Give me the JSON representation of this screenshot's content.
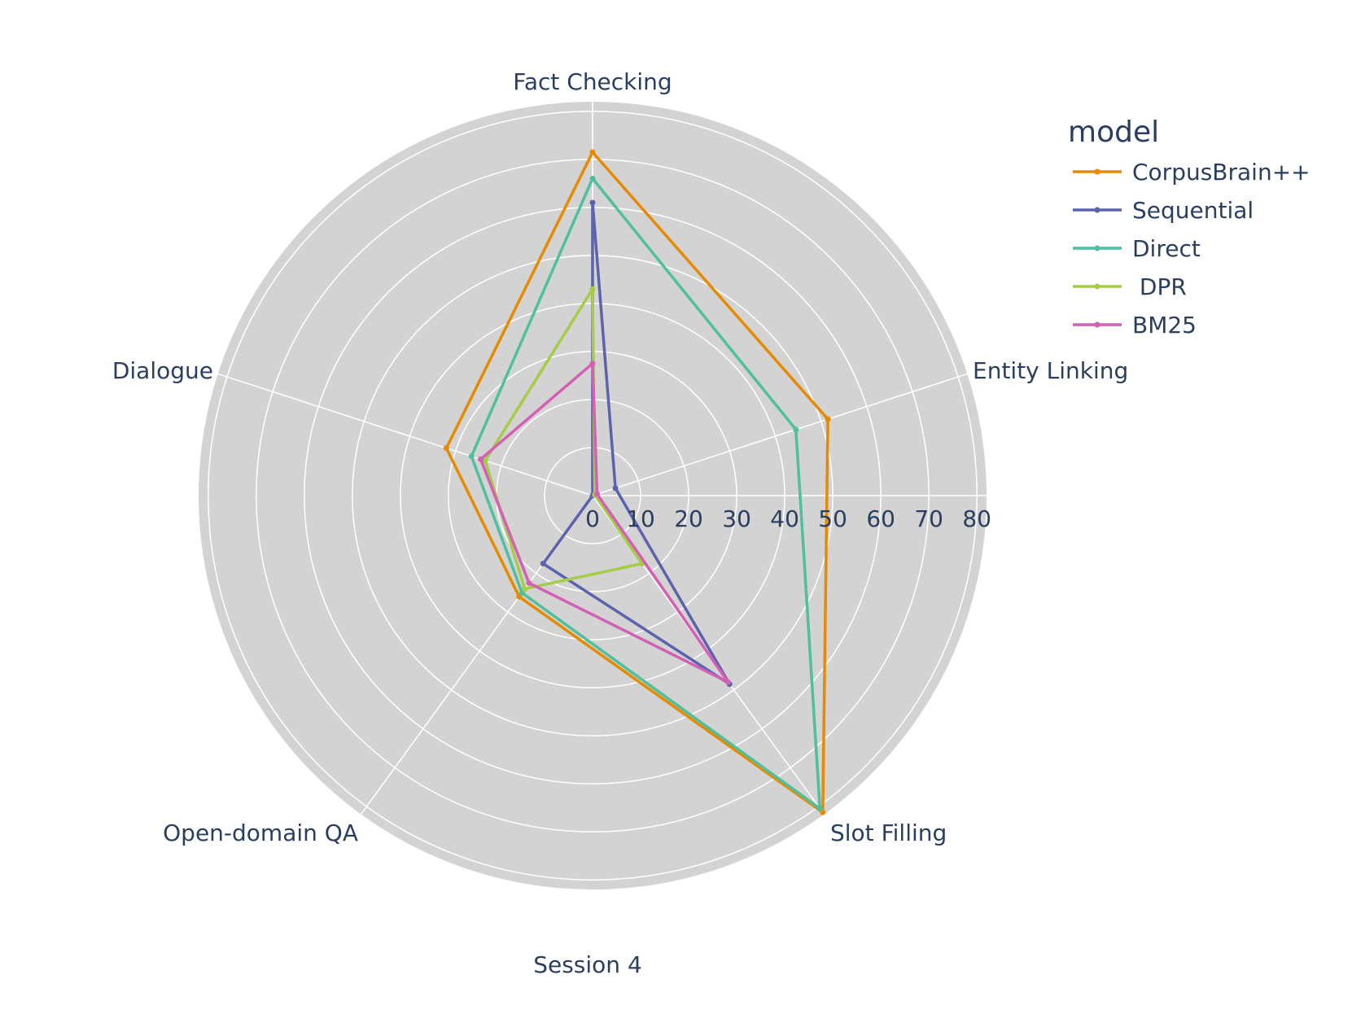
{
  "chart_data": {
    "type": "radar",
    "title": "",
    "caption": "Session 4",
    "categories": [
      "Fact Checking",
      "Entity Linking",
      "Slot Filling",
      "Open-domain QA",
      "Dialogue"
    ],
    "radial_ticks": [
      0,
      10,
      20,
      30,
      40,
      50,
      60,
      70,
      80
    ],
    "range": [
      0,
      82
    ],
    "legend_title": "model",
    "series": [
      {
        "name": "CorpusBrain++",
        "color": "#e68a00",
        "values": [
          71.5,
          51.5,
          81.5,
          26,
          32
        ]
      },
      {
        "name": "Sequential",
        "color": "#5c63ad",
        "values": [
          61,
          5,
          48.5,
          17.5,
          0
        ]
      },
      {
        "name": "Direct",
        "color": "#4fbf9f",
        "values": [
          66,
          44.5,
          80.5,
          25,
          26.5
        ]
      },
      {
        "name": " DPR",
        "color": "#a4cc44",
        "values": [
          43,
          0.5,
          17.5,
          24,
          23.5
        ]
      },
      {
        "name": "BM25",
        "color": "#d45fb5",
        "values": [
          27.5,
          1,
          48,
          22.5,
          24.5
        ]
      }
    ]
  }
}
